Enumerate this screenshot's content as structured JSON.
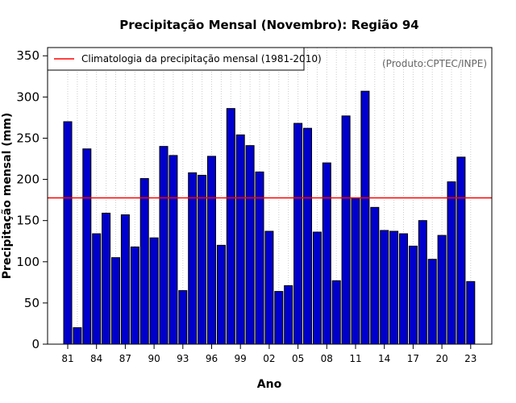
{
  "chart_data": {
    "type": "bar",
    "title": "Precipitação Mensal (Novembro): Região 94",
    "xlabel": "Ano",
    "ylabel": "Precipitação mensal (mm)",
    "ylim": [
      0,
      360
    ],
    "yticks": [
      0,
      50,
      100,
      150,
      200,
      250,
      300,
      350
    ],
    "grid": "vertical-dotted",
    "categories": [
      "1981",
      "1982",
      "1983",
      "1984",
      "1985",
      "1986",
      "1987",
      "1988",
      "1989",
      "1990",
      "1991",
      "1992",
      "1993",
      "1994",
      "1995",
      "1996",
      "1997",
      "1998",
      "1999",
      "2000",
      "2001",
      "2002",
      "2003",
      "2004",
      "2005",
      "2006",
      "2007",
      "2008",
      "2009",
      "2010",
      "2011",
      "2012",
      "2013",
      "2014",
      "2015",
      "2016",
      "2017",
      "2018",
      "2019",
      "2020",
      "2021",
      "2022",
      "2023"
    ],
    "xtick_labels": [
      {
        "index": 0,
        "label": "81"
      },
      {
        "index": 3,
        "label": "84"
      },
      {
        "index": 6,
        "label": "87"
      },
      {
        "index": 9,
        "label": "90"
      },
      {
        "index": 12,
        "label": "93"
      },
      {
        "index": 15,
        "label": "96"
      },
      {
        "index": 18,
        "label": "99"
      },
      {
        "index": 21,
        "label": "02"
      },
      {
        "index": 24,
        "label": "05"
      },
      {
        "index": 27,
        "label": "08"
      },
      {
        "index": 30,
        "label": "11"
      },
      {
        "index": 33,
        "label": "14"
      },
      {
        "index": 36,
        "label": "17"
      },
      {
        "index": 39,
        "label": "20"
      },
      {
        "index": 42,
        "label": "23"
      }
    ],
    "series": [
      {
        "name": "Precipitação mensal",
        "color": "#0000cc",
        "values": [
          270,
          20,
          237,
          134,
          159,
          105,
          157,
          118,
          201,
          129,
          240,
          229,
          65,
          208,
          205,
          228,
          120,
          286,
          254,
          241,
          209,
          137,
          64,
          71,
          268,
          262,
          136,
          220,
          77,
          277,
          177,
          307,
          166,
          138,
          137,
          134,
          119,
          150,
          103,
          132,
          197,
          227,
          76
        ]
      }
    ],
    "reference_line": {
      "name": "Climatologia da precipitação mensal (1981-2010)",
      "value": 177.5,
      "color": "#ff0000"
    },
    "legend": {
      "position": "top-left",
      "entries": [
        "Climatologia da precipitação mensal (1981-2010)"
      ]
    },
    "source_note": "(Produto:CPTEC/INPE)"
  }
}
